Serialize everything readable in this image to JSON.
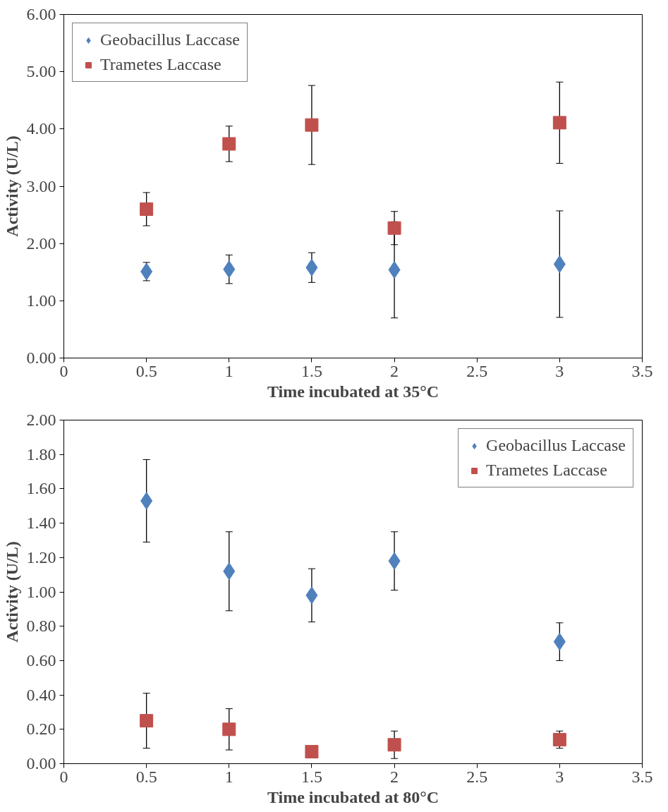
{
  "chart_data": [
    {
      "type": "scatter",
      "xlabel": "Time incubated at 35°C",
      "ylabel": "Activity (U/L)",
      "xlim": [
        0,
        3.5
      ],
      "xticks": [
        0,
        0.5,
        1,
        1.5,
        2,
        2.5,
        3,
        3.5
      ],
      "ylim": [
        0,
        6
      ],
      "yticks": [
        {
          "value": 0,
          "label": "0.00"
        },
        {
          "value": 1,
          "label": "1.00"
        },
        {
          "value": 2,
          "label": "2.00"
        },
        {
          "value": 3,
          "label": "3.00"
        },
        {
          "value": 4,
          "label": "4.00"
        },
        {
          "value": 5,
          "label": "5.00"
        },
        {
          "value": 6,
          "label": "6.00"
        }
      ],
      "grid": false,
      "legend": "top left",
      "x": [
        0.5,
        1,
        1.5,
        2,
        3
      ],
      "series": [
        {
          "name": "Geobacillus Laccase",
          "color": "#4f81bd",
          "marker": "diamond",
          "values": [
            1.51,
            1.55,
            1.58,
            1.54,
            1.64
          ],
          "errors": [
            0.16,
            0.25,
            0.26,
            0.84,
            0.93
          ]
        },
        {
          "name": "Trametes Laccase",
          "color": "#c0504d",
          "marker": "square",
          "values": [
            2.6,
            3.74,
            4.07,
            2.27,
            4.11
          ],
          "errors": [
            0.29,
            0.31,
            0.69,
            0.29,
            0.71
          ]
        }
      ]
    },
    {
      "type": "scatter",
      "xlabel": "Time incubated at 80°C",
      "ylabel": "Activity (U/L)",
      "xlim": [
        0,
        3.5
      ],
      "xticks": [
        0,
        0.5,
        1,
        1.5,
        2,
        2.5,
        3,
        3.5
      ],
      "ylim": [
        0,
        2
      ],
      "yticks": [
        {
          "value": 0,
          "label": "0.00"
        },
        {
          "value": 0.2,
          "label": "0.20"
        },
        {
          "value": 0.4,
          "label": "0.40"
        },
        {
          "value": 0.6,
          "label": "0.60"
        },
        {
          "value": 0.8,
          "label": "0.80"
        },
        {
          "value": 1,
          "label": "1.00"
        },
        {
          "value": 1.2,
          "label": "1.20"
        },
        {
          "value": 1.4,
          "label": "1.40"
        },
        {
          "value": 1.6,
          "label": "1.60"
        },
        {
          "value": 1.8,
          "label": "1.80"
        },
        {
          "value": 2,
          "label": "2.00"
        }
      ],
      "grid": false,
      "legend": "top right",
      "x": [
        0.5,
        1,
        1.5,
        2,
        3
      ],
      "series": [
        {
          "name": "Geobacillus Laccase",
          "color": "#4f81bd",
          "marker": "diamond",
          "values": [
            1.53,
            1.12,
            0.98,
            1.18,
            0.71
          ],
          "errors": [
            0.24,
            0.23,
            0.155,
            0.17,
            0.11
          ]
        },
        {
          "name": "Trametes Laccase",
          "color": "#c0504d",
          "marker": "square",
          "values": [
            0.25,
            0.2,
            0.07,
            0.11,
            0.14
          ],
          "errors": [
            0.16,
            0.12,
            null,
            0.08,
            0.05
          ]
        }
      ]
    }
  ]
}
